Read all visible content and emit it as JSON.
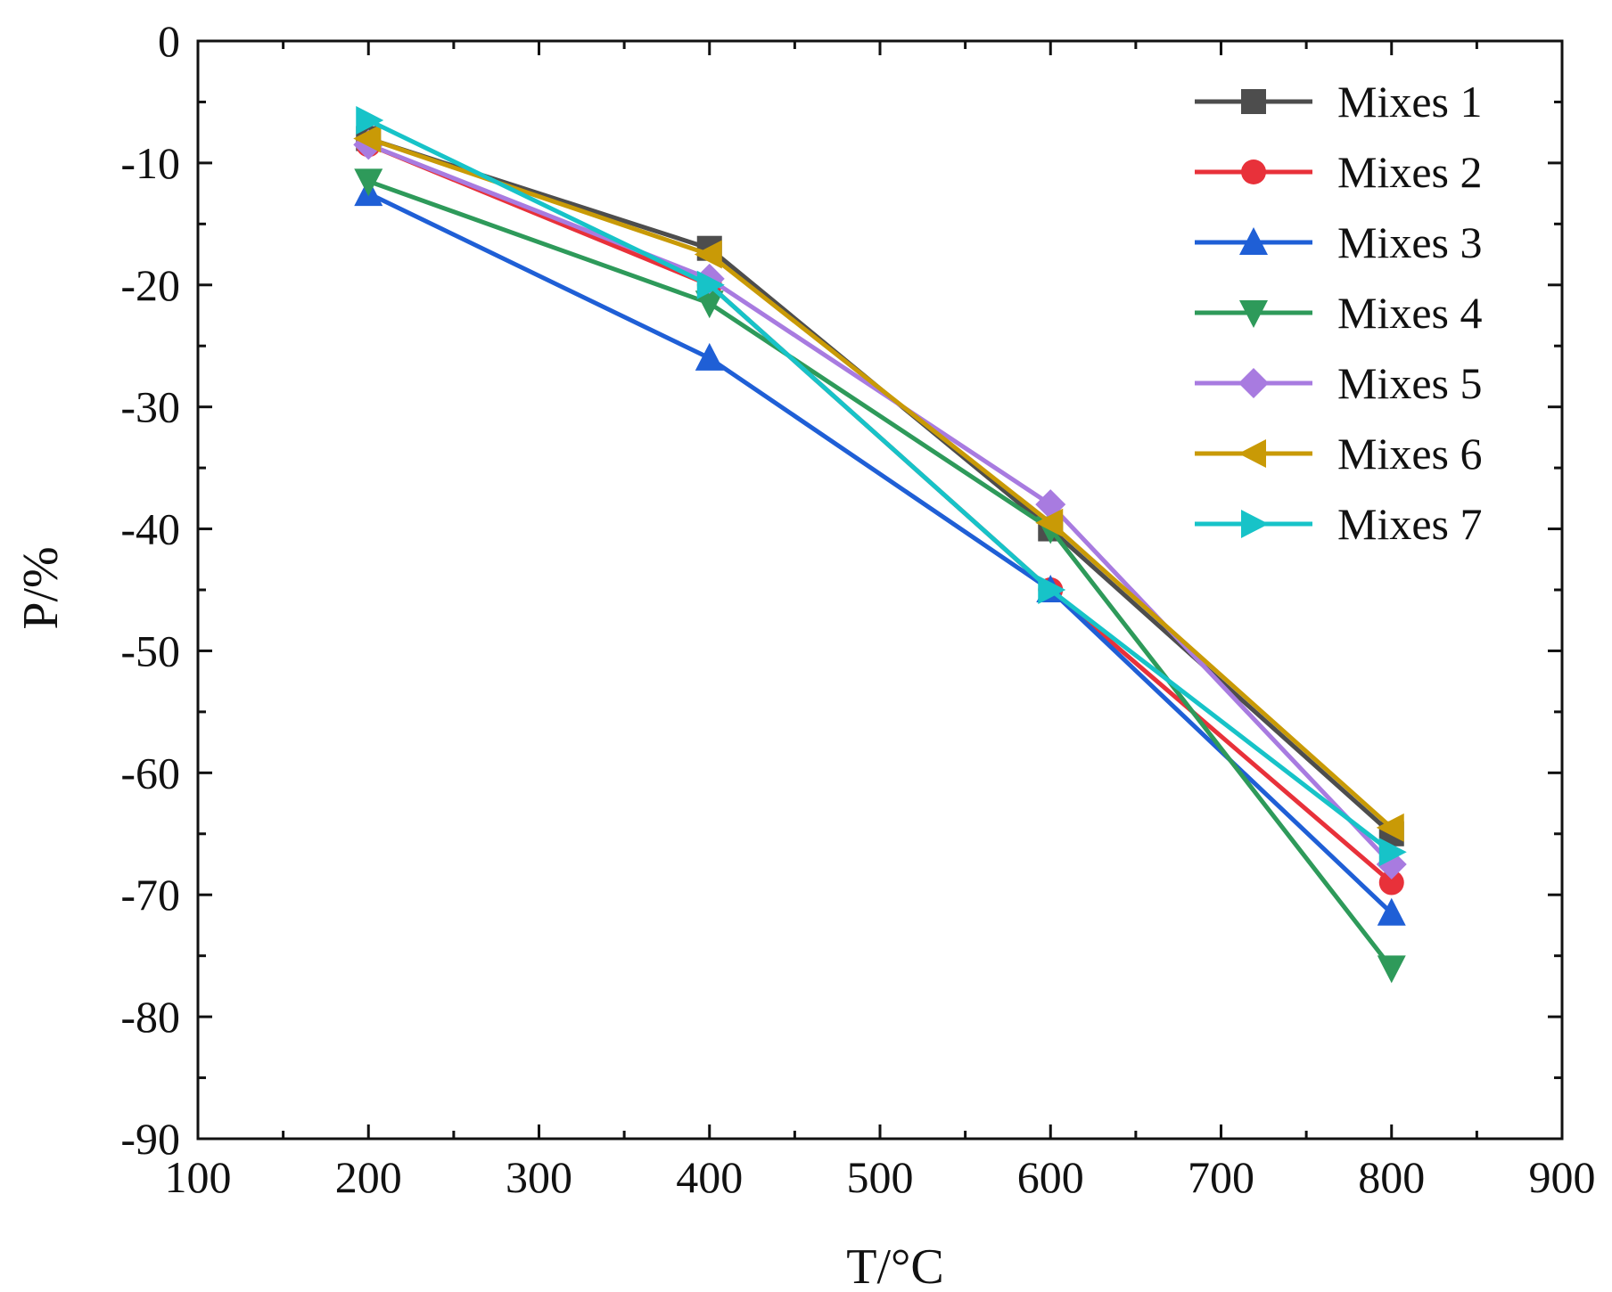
{
  "chart_data": {
    "type": "line",
    "title": "",
    "xlabel": "T/°C",
    "ylabel": "P/%",
    "xlim": [
      100,
      900
    ],
    "ylim": [
      -90,
      0
    ],
    "xticks": [
      100,
      200,
      300,
      400,
      500,
      600,
      700,
      800,
      900
    ],
    "yticks": [
      0,
      -10,
      -20,
      -30,
      -40,
      -50,
      -60,
      -70,
      -80,
      -90
    ],
    "x": [
      200,
      400,
      600,
      800
    ],
    "legend_position": "top-right",
    "grid": false,
    "series": [
      {
        "name": "Mixes 1",
        "color": "#4d4d4d",
        "marker": "square",
        "values": [
          -8.0,
          -17.0,
          -40.0,
          -65.0
        ]
      },
      {
        "name": "Mixes 2",
        "color": "#e8313a",
        "marker": "circle",
        "values": [
          -8.5,
          -20.0,
          -45.0,
          -69.0
        ]
      },
      {
        "name": "Mixes 3",
        "color": "#1f5fd6",
        "marker": "triangle-up",
        "values": [
          -12.5,
          -26.0,
          -45.0,
          -71.5
        ]
      },
      {
        "name": "Mixes 4",
        "color": "#2e9a5a",
        "marker": "triangle-down",
        "values": [
          -11.5,
          -21.5,
          -40.0,
          -76.0
        ]
      },
      {
        "name": "Mixes 5",
        "color": "#a87be0",
        "marker": "diamond",
        "values": [
          -8.5,
          -19.5,
          -38.0,
          -67.5
        ]
      },
      {
        "name": "Mixes 6",
        "color": "#c99a06",
        "marker": "triangle-left",
        "values": [
          -8.0,
          -17.5,
          -39.5,
          -64.5
        ]
      },
      {
        "name": "Mixes 7",
        "color": "#17c3c8",
        "marker": "triangle-right",
        "values": [
          -6.5,
          -20.0,
          -45.0,
          -66.5
        ]
      }
    ]
  }
}
